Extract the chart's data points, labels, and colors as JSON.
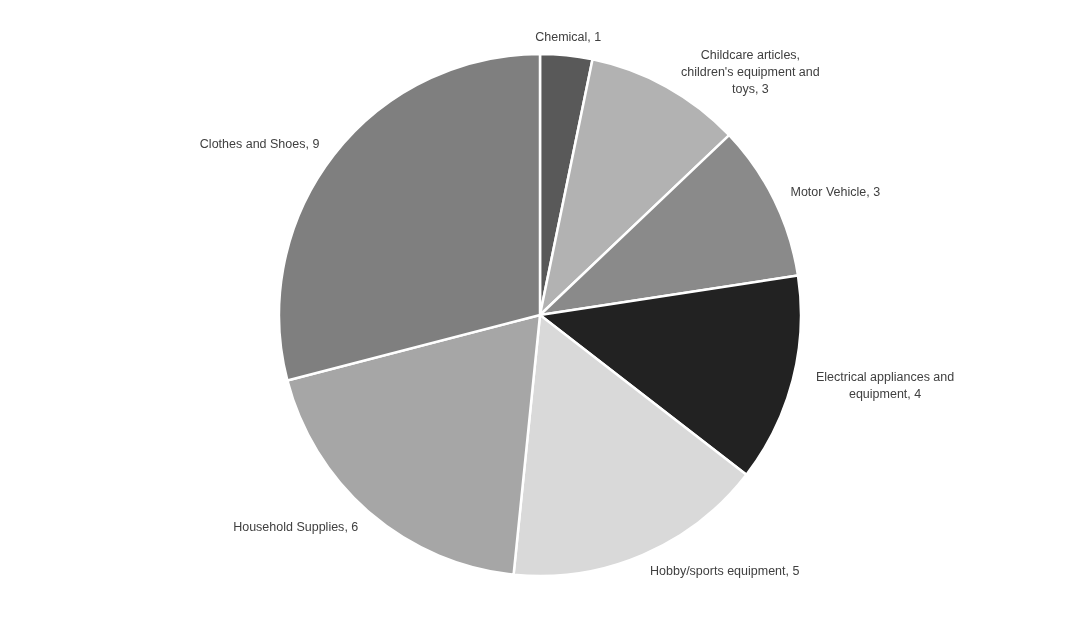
{
  "chart_data": {
    "type": "pie",
    "categories": [
      "Chemical",
      "Childcare articles, children's equipment and toys",
      "Motor Vehicle",
      "Electrical appliances and equipment",
      "Hobby/sports equipment",
      "Household Supplies",
      "Clothes and Shoes"
    ],
    "values": [
      1,
      3,
      3,
      4,
      5,
      6,
      9
    ],
    "colors": [
      "#595959",
      "#b2b2b2",
      "#8a8a8a",
      "#222222",
      "#d9d9d9",
      "#a6a6a6",
      "#7f7f7f"
    ],
    "value_labels": [
      ", 1",
      ", 3",
      ", 3",
      ", 4",
      ", 5",
      ", 6",
      ", 9"
    ],
    "legend": false
  }
}
